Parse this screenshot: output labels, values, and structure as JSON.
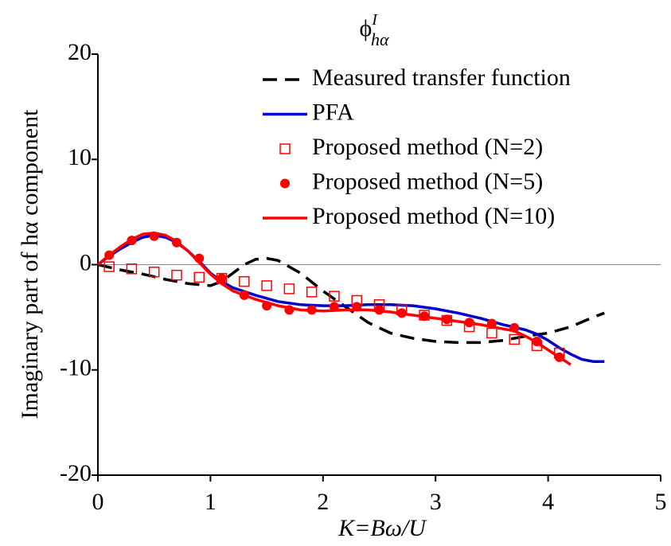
{
  "chart_data": {
    "type": "line",
    "title": "ϕ",
    "title_superscript": "I",
    "title_subscript": "hα",
    "xlabel": "K=Bω/U",
    "ylabel": "Imaginary part of hα component",
    "xlim": [
      0,
      5
    ],
    "xticks": [
      0,
      1,
      2,
      3,
      4,
      5
    ],
    "ylim": [
      -20,
      20
    ],
    "yticks": [
      -20,
      -10,
      0,
      10,
      20
    ],
    "zero_line": true,
    "series": [
      {
        "name": "Measured transfer function",
        "color": "#000000",
        "style": "dashed",
        "x": [
          0,
          0.2,
          0.4,
          0.6,
          0.8,
          1.0,
          1.1,
          1.2,
          1.3,
          1.4,
          1.5,
          1.6,
          1.8,
          2.0,
          2.2,
          2.4,
          2.6,
          2.8,
          3.0,
          3.2,
          3.4,
          3.6,
          3.8,
          4.0,
          4.2,
          4.4,
          4.5
        ],
        "values": [
          0,
          -0.5,
          -0.9,
          -1.4,
          -1.8,
          -2.0,
          -1.6,
          -0.8,
          0,
          0.5,
          0.6,
          0.4,
          -0.8,
          -2.5,
          -4.0,
          -5.5,
          -6.5,
          -7.0,
          -7.3,
          -7.4,
          -7.4,
          -7.2,
          -6.8,
          -6.5,
          -5.9,
          -5.0,
          -4.6
        ]
      },
      {
        "name": "PFA",
        "color": "#0000cc",
        "style": "solid",
        "x": [
          0,
          0.1,
          0.2,
          0.3,
          0.4,
          0.5,
          0.6,
          0.7,
          0.8,
          0.9,
          1.0,
          1.1,
          1.2,
          1.4,
          1.6,
          1.8,
          2.0,
          2.2,
          2.4,
          2.6,
          2.8,
          3.0,
          3.2,
          3.4,
          3.6,
          3.8,
          3.9,
          4.0,
          4.1,
          4.2,
          4.3,
          4.4,
          4.5
        ],
        "values": [
          0,
          0.8,
          1.5,
          2.1,
          2.6,
          2.8,
          2.6,
          2.1,
          1.3,
          0.3,
          -0.8,
          -1.6,
          -2.2,
          -2.9,
          -3.5,
          -3.8,
          -3.9,
          -3.9,
          -3.8,
          -3.8,
          -3.9,
          -4.2,
          -4.6,
          -5.1,
          -5.7,
          -6.2,
          -6.6,
          -7.2,
          -7.9,
          -8.5,
          -9.0,
          -9.2,
          -9.2
        ]
      },
      {
        "name": "Proposed method (N=2)",
        "color": "#ff0000",
        "style": "markers",
        "marker": "square-open",
        "x": [
          0.1,
          0.3,
          0.5,
          0.7,
          0.9,
          1.1,
          1.3,
          1.5,
          1.7,
          1.9,
          2.1,
          2.3,
          2.5,
          2.7,
          2.9,
          3.1,
          3.3,
          3.5,
          3.7,
          3.9,
          4.1
        ],
        "values": [
          -0.2,
          -0.4,
          -0.7,
          -1.0,
          -1.2,
          -1.3,
          -1.6,
          -2.0,
          -2.3,
          -2.6,
          -3.0,
          -3.4,
          -3.8,
          -4.3,
          -4.8,
          -5.3,
          -5.9,
          -6.5,
          -7.1,
          -7.7,
          -8.4
        ]
      },
      {
        "name": "Proposed method (N=5)",
        "color": "#ff0000",
        "style": "markers",
        "marker": "circle",
        "x": [
          0.1,
          0.3,
          0.5,
          0.7,
          0.9,
          1.1,
          1.3,
          1.5,
          1.7,
          1.9,
          2.1,
          2.3,
          2.5,
          2.7,
          2.9,
          3.1,
          3.3,
          3.5,
          3.7,
          3.9,
          4.1
        ],
        "values": [
          0.9,
          2.3,
          2.7,
          2.1,
          0.6,
          -1.3,
          -2.9,
          -3.9,
          -4.3,
          -4.3,
          -4.0,
          -4.0,
          -4.3,
          -4.6,
          -4.9,
          -5.2,
          -5.5,
          -5.6,
          -6.0,
          -7.3,
          -8.8
        ]
      },
      {
        "name": "Proposed method (N=10)",
        "color": "#ff0000",
        "style": "solid",
        "x": [
          0,
          0.1,
          0.2,
          0.3,
          0.4,
          0.5,
          0.6,
          0.7,
          0.8,
          0.9,
          1.0,
          1.1,
          1.2,
          1.4,
          1.6,
          1.8,
          2.0,
          2.2,
          2.4,
          2.6,
          2.8,
          3.0,
          3.2,
          3.4,
          3.6,
          3.7,
          3.8,
          3.9,
          4.0,
          4.1,
          4.2
        ],
        "values": [
          0,
          0.9,
          1.7,
          2.4,
          2.9,
          3.0,
          2.8,
          2.2,
          1.3,
          0.2,
          -0.9,
          -1.8,
          -2.5,
          -3.3,
          -3.9,
          -4.3,
          -4.4,
          -4.3,
          -4.3,
          -4.5,
          -4.8,
          -5.1,
          -5.4,
          -5.7,
          -6.1,
          -6.3,
          -6.8,
          -7.4,
          -8.1,
          -8.8,
          -9.5
        ]
      }
    ]
  }
}
